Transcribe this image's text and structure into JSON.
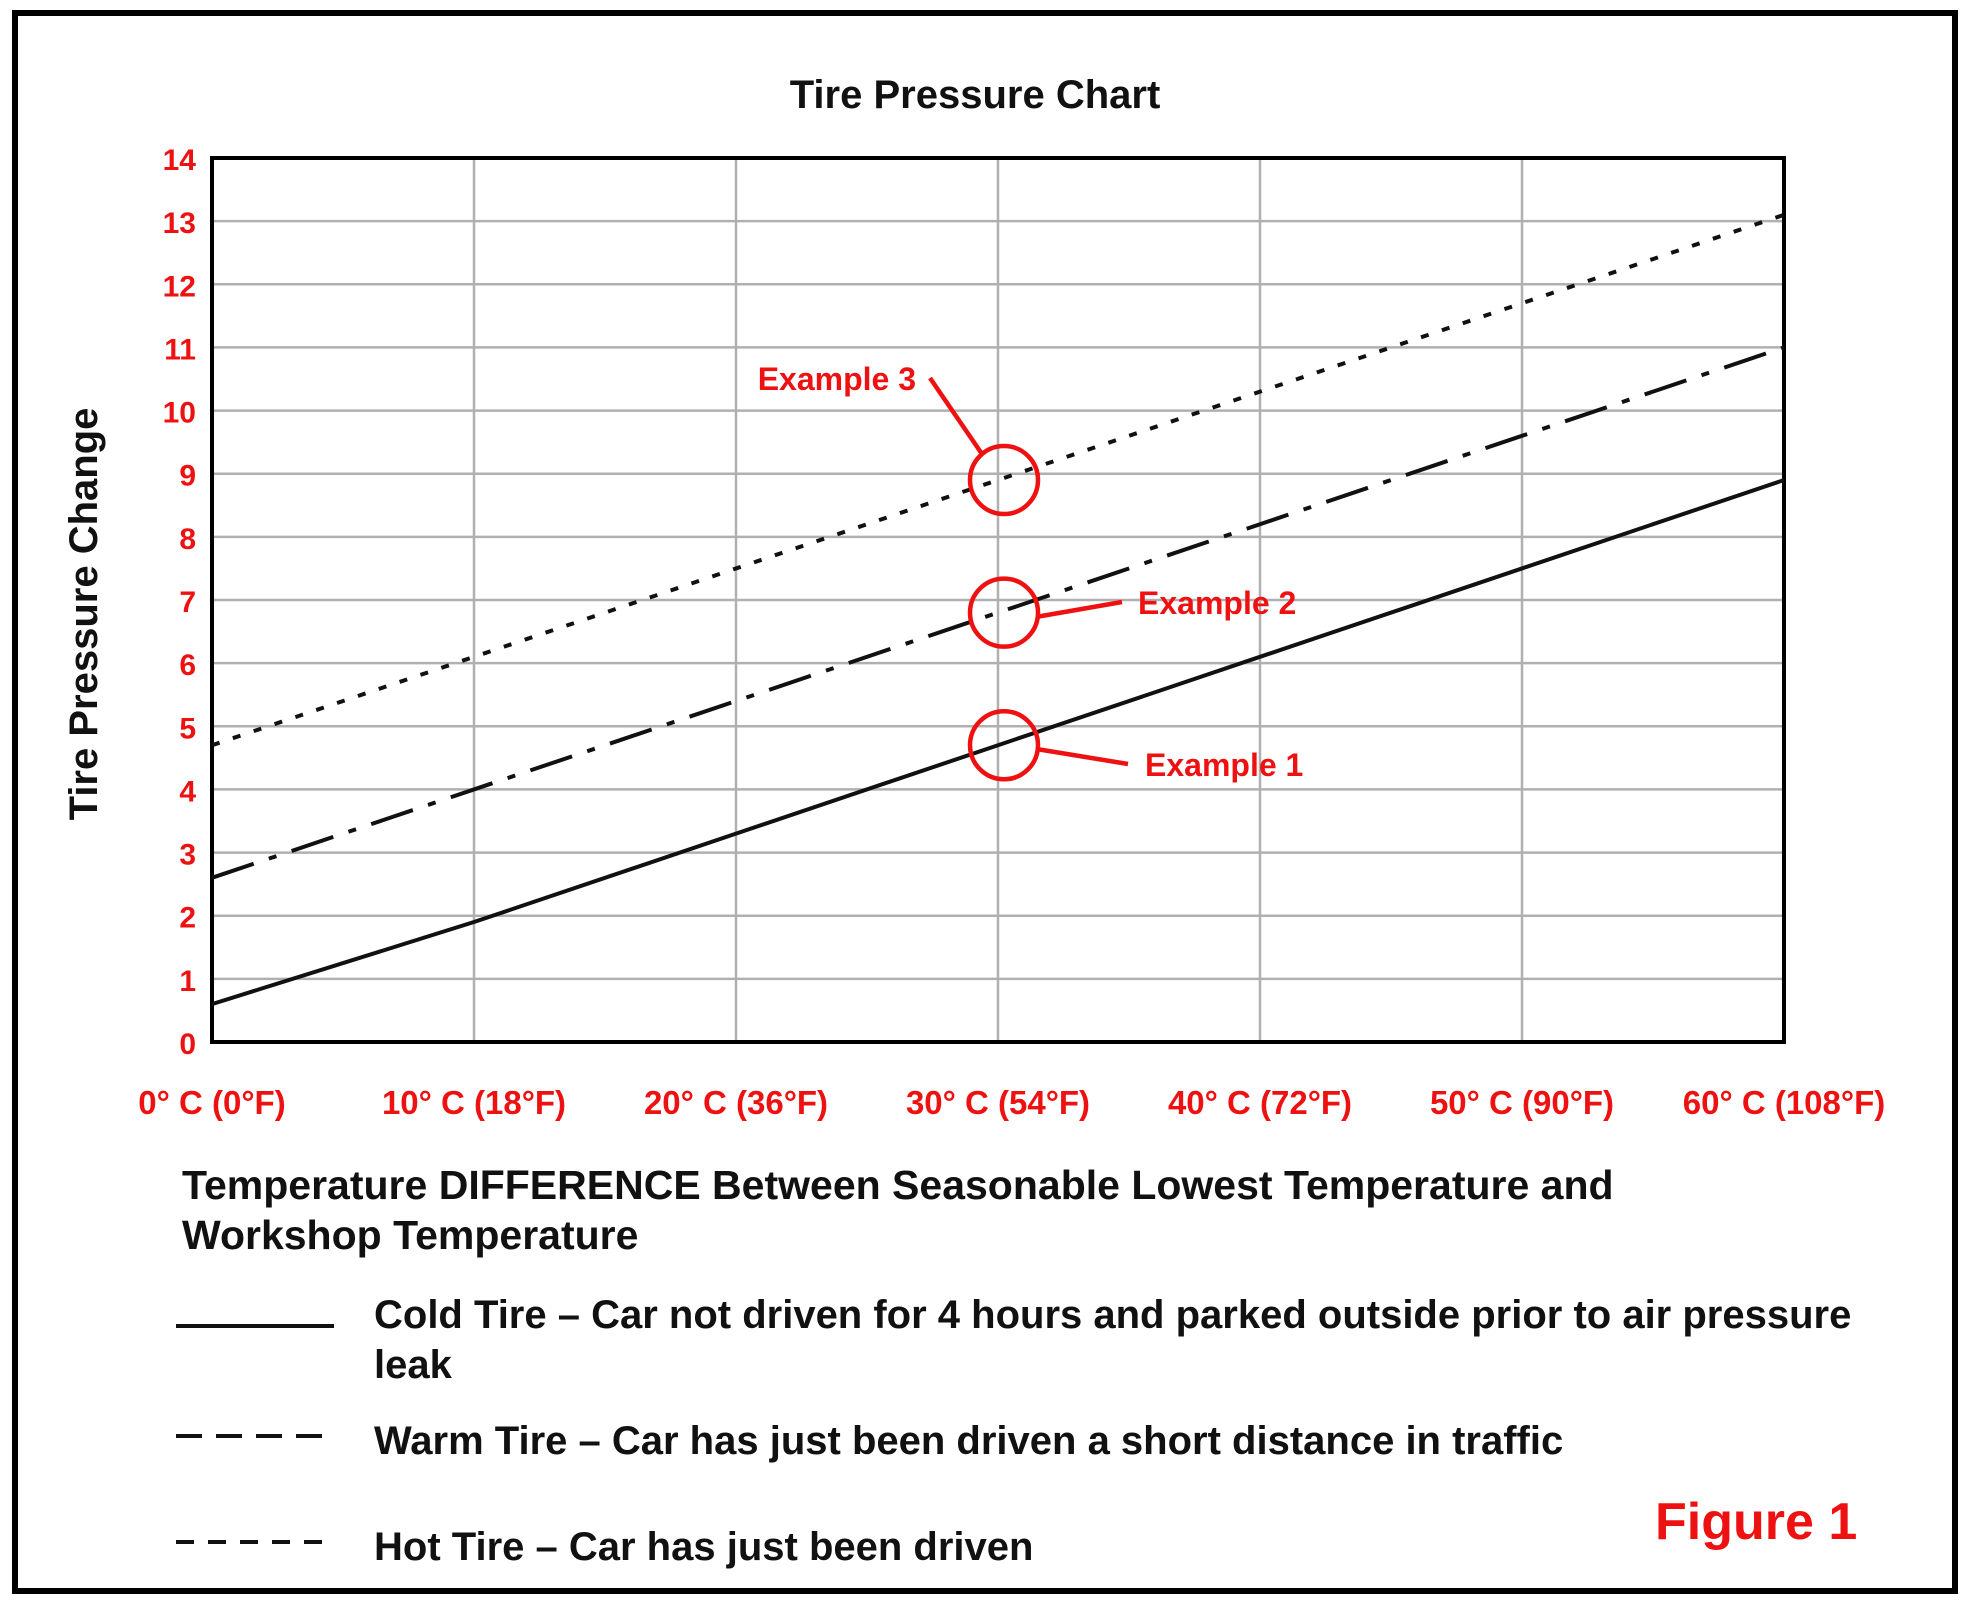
{
  "chart_data": {
    "type": "line",
    "title": "Tire Pressure Chart",
    "ylabel": "Tire Pressure Change",
    "xlabel": "Temperature DIFFERENCE Between Seasonable Lowest Temperature and Workshop Temperature",
    "xlim": [
      0,
      60
    ],
    "ylim": [
      0,
      14
    ],
    "grid": true,
    "x_tick_values": [
      0,
      10,
      20,
      30,
      40,
      50,
      60
    ],
    "x_tick_labels": [
      "0° C (0°F)",
      "10° C (18°F)",
      "20° C (36°F)",
      "30° C (54°F)",
      "40° C (72°F)",
      "50° C (90°F)",
      "60° C (108°F)"
    ],
    "y_ticks": [
      0,
      1,
      2,
      3,
      4,
      5,
      6,
      7,
      8,
      9,
      10,
      11,
      12,
      13,
      14
    ],
    "x": [
      0,
      10,
      20,
      30,
      40,
      50,
      60
    ],
    "series": [
      {
        "key": "cold",
        "values": [
          0.6,
          1.9,
          3.3,
          4.7,
          6.1,
          7.5,
          8.9
        ],
        "dash": "solid"
      },
      {
        "key": "warm",
        "values": [
          2.6,
          4.0,
          5.4,
          6.8,
          8.2,
          9.6,
          11.0
        ],
        "dash": "dashdot"
      },
      {
        "key": "hot",
        "values": [
          4.7,
          6.1,
          7.5,
          8.9,
          10.3,
          11.7,
          13.1
        ],
        "dash": "dotted"
      }
    ],
    "annotations": [
      {
        "label": "Example 1",
        "x": 30,
        "y": 4.7
      },
      {
        "label": "Example 2",
        "x": 30,
        "y": 6.8
      },
      {
        "label": "Example 3",
        "x": 30,
        "y": 8.9
      }
    ],
    "legend": [
      {
        "key": "cold",
        "text": "Cold Tire – Car not driven for 4 hours and parked outside prior to air pressure leak"
      },
      {
        "key": "warm",
        "text": "Warm Tire – Car has just been driven a short distance in traffic"
      },
      {
        "key": "hot",
        "text": "Hot Tire – Car has just been driven"
      }
    ],
    "legend_position": "bottom",
    "figure_label": "Figure 1",
    "colors": {
      "axis_text": "#ee1111",
      "line": "#111111",
      "grid": "#b0b0b0"
    }
  }
}
